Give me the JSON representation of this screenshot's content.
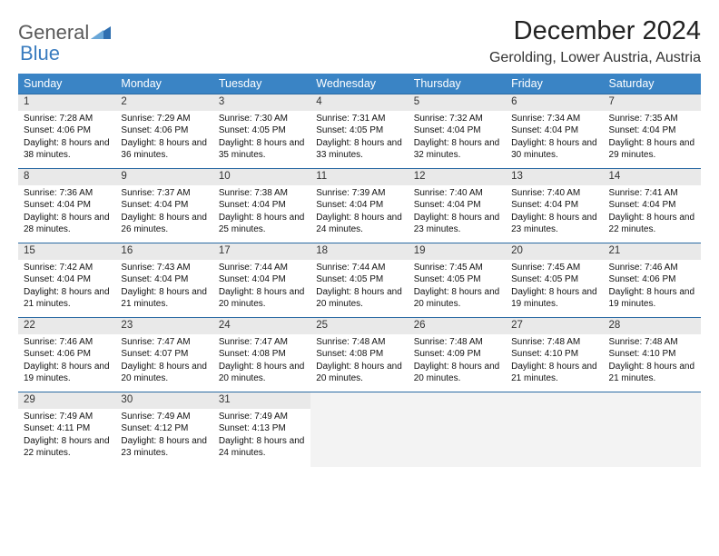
{
  "brand": {
    "line1": "General",
    "line2": "Blue"
  },
  "title": "December 2024",
  "subtitle": "Gerolding, Lower Austria, Austria",
  "colors": {
    "header_bg": "#3a84c5",
    "header_text": "#ffffff",
    "daynum_bg": "#e9e9e9",
    "rule": "#2a6aa3",
    "brand_gray": "#5a5a5a",
    "brand_blue": "#3a7cbf"
  },
  "weekdays": [
    "Sunday",
    "Monday",
    "Tuesday",
    "Wednesday",
    "Thursday",
    "Friday",
    "Saturday"
  ],
  "weeks": [
    [
      {
        "n": "1",
        "sr": "7:28 AM",
        "ss": "4:06 PM",
        "dl": "8 hours and 38 minutes."
      },
      {
        "n": "2",
        "sr": "7:29 AM",
        "ss": "4:06 PM",
        "dl": "8 hours and 36 minutes."
      },
      {
        "n": "3",
        "sr": "7:30 AM",
        "ss": "4:05 PM",
        "dl": "8 hours and 35 minutes."
      },
      {
        "n": "4",
        "sr": "7:31 AM",
        "ss": "4:05 PM",
        "dl": "8 hours and 33 minutes."
      },
      {
        "n": "5",
        "sr": "7:32 AM",
        "ss": "4:04 PM",
        "dl": "8 hours and 32 minutes."
      },
      {
        "n": "6",
        "sr": "7:34 AM",
        "ss": "4:04 PM",
        "dl": "8 hours and 30 minutes."
      },
      {
        "n": "7",
        "sr": "7:35 AM",
        "ss": "4:04 PM",
        "dl": "8 hours and 29 minutes."
      }
    ],
    [
      {
        "n": "8",
        "sr": "7:36 AM",
        "ss": "4:04 PM",
        "dl": "8 hours and 28 minutes."
      },
      {
        "n": "9",
        "sr": "7:37 AM",
        "ss": "4:04 PM",
        "dl": "8 hours and 26 minutes."
      },
      {
        "n": "10",
        "sr": "7:38 AM",
        "ss": "4:04 PM",
        "dl": "8 hours and 25 minutes."
      },
      {
        "n": "11",
        "sr": "7:39 AM",
        "ss": "4:04 PM",
        "dl": "8 hours and 24 minutes."
      },
      {
        "n": "12",
        "sr": "7:40 AM",
        "ss": "4:04 PM",
        "dl": "8 hours and 23 minutes."
      },
      {
        "n": "13",
        "sr": "7:40 AM",
        "ss": "4:04 PM",
        "dl": "8 hours and 23 minutes."
      },
      {
        "n": "14",
        "sr": "7:41 AM",
        "ss": "4:04 PM",
        "dl": "8 hours and 22 minutes."
      }
    ],
    [
      {
        "n": "15",
        "sr": "7:42 AM",
        "ss": "4:04 PM",
        "dl": "8 hours and 21 minutes."
      },
      {
        "n": "16",
        "sr": "7:43 AM",
        "ss": "4:04 PM",
        "dl": "8 hours and 21 minutes."
      },
      {
        "n": "17",
        "sr": "7:44 AM",
        "ss": "4:04 PM",
        "dl": "8 hours and 20 minutes."
      },
      {
        "n": "18",
        "sr": "7:44 AM",
        "ss": "4:05 PM",
        "dl": "8 hours and 20 minutes."
      },
      {
        "n": "19",
        "sr": "7:45 AM",
        "ss": "4:05 PM",
        "dl": "8 hours and 20 minutes."
      },
      {
        "n": "20",
        "sr": "7:45 AM",
        "ss": "4:05 PM",
        "dl": "8 hours and 19 minutes."
      },
      {
        "n": "21",
        "sr": "7:46 AM",
        "ss": "4:06 PM",
        "dl": "8 hours and 19 minutes."
      }
    ],
    [
      {
        "n": "22",
        "sr": "7:46 AM",
        "ss": "4:06 PM",
        "dl": "8 hours and 19 minutes."
      },
      {
        "n": "23",
        "sr": "7:47 AM",
        "ss": "4:07 PM",
        "dl": "8 hours and 20 minutes."
      },
      {
        "n": "24",
        "sr": "7:47 AM",
        "ss": "4:08 PM",
        "dl": "8 hours and 20 minutes."
      },
      {
        "n": "25",
        "sr": "7:48 AM",
        "ss": "4:08 PM",
        "dl": "8 hours and 20 minutes."
      },
      {
        "n": "26",
        "sr": "7:48 AM",
        "ss": "4:09 PM",
        "dl": "8 hours and 20 minutes."
      },
      {
        "n": "27",
        "sr": "7:48 AM",
        "ss": "4:10 PM",
        "dl": "8 hours and 21 minutes."
      },
      {
        "n": "28",
        "sr": "7:48 AM",
        "ss": "4:10 PM",
        "dl": "8 hours and 21 minutes."
      }
    ],
    [
      {
        "n": "29",
        "sr": "7:49 AM",
        "ss": "4:11 PM",
        "dl": "8 hours and 22 minutes."
      },
      {
        "n": "30",
        "sr": "7:49 AM",
        "ss": "4:12 PM",
        "dl": "8 hours and 23 minutes."
      },
      {
        "n": "31",
        "sr": "7:49 AM",
        "ss": "4:13 PM",
        "dl": "8 hours and 24 minutes."
      },
      null,
      null,
      null,
      null
    ]
  ],
  "labels": {
    "sunrise": "Sunrise:",
    "sunset": "Sunset:",
    "daylight": "Daylight:"
  }
}
